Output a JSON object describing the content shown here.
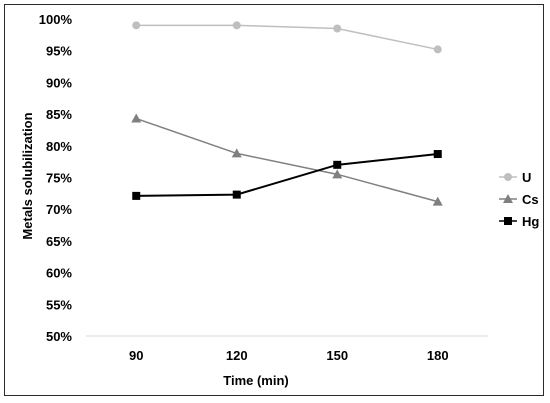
{
  "chart_data": {
    "type": "line",
    "title": "",
    "xlabel": "Time (min)",
    "ylabel": "Metals solubilization",
    "categories": [
      "90",
      "120",
      "150",
      "180"
    ],
    "ylim": [
      0.5,
      1.0
    ],
    "yticks": [
      "50%",
      "55%",
      "60%",
      "65%",
      "70%",
      "75%",
      "80%",
      "85%",
      "90%",
      "95%",
      "100%"
    ],
    "grid": false,
    "legend_position": "right",
    "series": [
      {
        "name": "U",
        "marker": "circle",
        "color": "#bfbfbf",
        "values": [
          0.99,
          0.99,
          0.985,
          0.952
        ]
      },
      {
        "name": "Cs",
        "marker": "triangle",
        "color": "#808080",
        "values": [
          0.843,
          0.788,
          0.755,
          0.712
        ]
      },
      {
        "name": "Hg",
        "marker": "square",
        "color": "#000000",
        "values": [
          0.721,
          0.723,
          0.77,
          0.787
        ]
      }
    ]
  }
}
